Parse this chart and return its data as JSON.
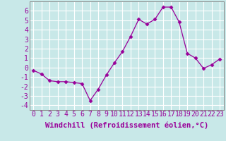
{
  "x": [
    0,
    1,
    2,
    3,
    4,
    5,
    6,
    7,
    8,
    9,
    10,
    11,
    12,
    13,
    14,
    15,
    16,
    17,
    18,
    19,
    20,
    21,
    22,
    23
  ],
  "y": [
    -0.3,
    -0.7,
    -1.4,
    -1.5,
    -1.5,
    -1.6,
    -1.7,
    -3.5,
    -2.3,
    -0.8,
    0.5,
    1.7,
    3.3,
    5.1,
    4.6,
    5.1,
    6.4,
    6.4,
    4.8,
    1.5,
    1.0,
    -0.1,
    0.3,
    0.9
  ],
  "line_color": "#990099",
  "marker": "D",
  "marker_size": 2.5,
  "background_color": "#c8e8e8",
  "grid_color": "#ffffff",
  "xlabel": "Windchill (Refroidissement éolien,°C)",
  "xlabel_fontsize": 7.5,
  "tick_fontsize": 7,
  "tick_color": "#990099",
  "xlim": [
    -0.5,
    23.5
  ],
  "ylim": [
    -4.5,
    7.0
  ],
  "yticks": [
    -4,
    -3,
    -2,
    -1,
    0,
    1,
    2,
    3,
    4,
    5,
    6
  ],
  "xticks": [
    0,
    1,
    2,
    3,
    4,
    5,
    6,
    7,
    8,
    9,
    10,
    11,
    12,
    13,
    14,
    15,
    16,
    17,
    18,
    19,
    20,
    21,
    22,
    23
  ]
}
